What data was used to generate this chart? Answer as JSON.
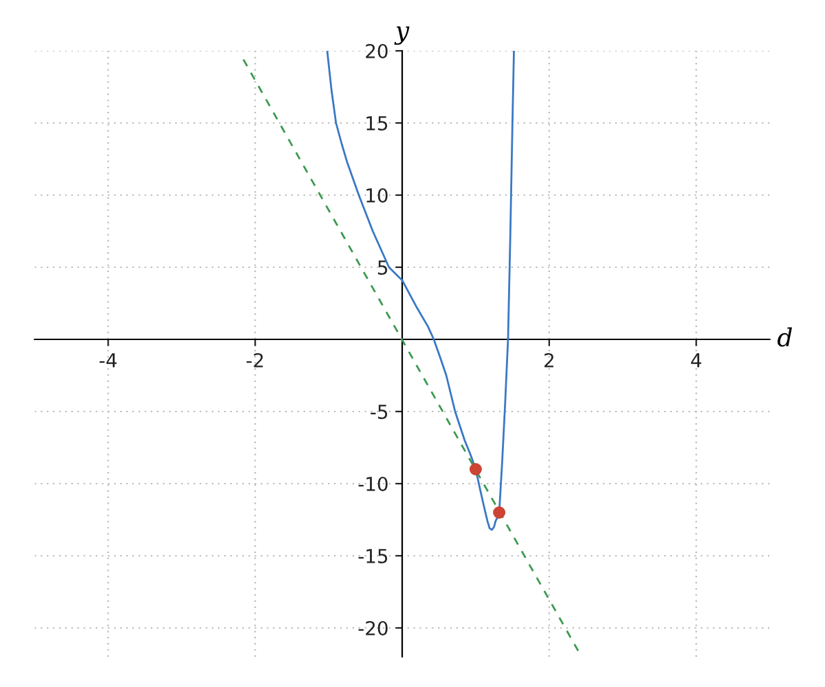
{
  "chart_data": {
    "type": "line",
    "xlabel": "d",
    "ylabel": "y",
    "xlim": [
      -5,
      5
    ],
    "ylim": [
      -22,
      20
    ],
    "xticks": [
      -4,
      -2,
      2,
      4
    ],
    "yticks": [
      -20,
      -15,
      -10,
      -5,
      5,
      10,
      15,
      20
    ],
    "grid": true,
    "series": [
      {
        "color": "#3a78c4",
        "line_style": "solid",
        "x": [
          -1.02,
          -0.96,
          -0.9,
          -0.82,
          -0.75,
          -0.59,
          -0.4,
          -0.18,
          0,
          0.2,
          0.35,
          0.43,
          0.52,
          0.6,
          0.72,
          0.85,
          0.93,
          1.0,
          1.06,
          1.1,
          1.16,
          1.19,
          1.22,
          1.25,
          1.27,
          1.3,
          1.32,
          1.36,
          1.4,
          1.44,
          1.47,
          1.5,
          1.52
        ],
        "values": [
          20,
          17.2,
          15,
          13.5,
          12.3,
          10,
          7.5,
          5,
          4.1,
          2.2,
          0.9,
          0,
          -1.3,
          -2.5,
          -5,
          -7,
          -8,
          -9,
          -10.4,
          -11.3,
          -12.6,
          -13.1,
          -13.2,
          -13,
          -12.6,
          -12.3,
          -12,
          -8.5,
          -4.5,
          0,
          7,
          15,
          20
        ]
      },
      {
        "color": "#3d9a50",
        "line_style": "dashed",
        "x": [
          -2.16,
          2.44
        ],
        "values": [
          19.4,
          -22
        ]
      },
      {
        "type": "scatter",
        "color": "#cc4433",
        "marker": "circle",
        "x": [
          1.0,
          1.32
        ],
        "values": [
          -9,
          -12
        ]
      }
    ]
  }
}
